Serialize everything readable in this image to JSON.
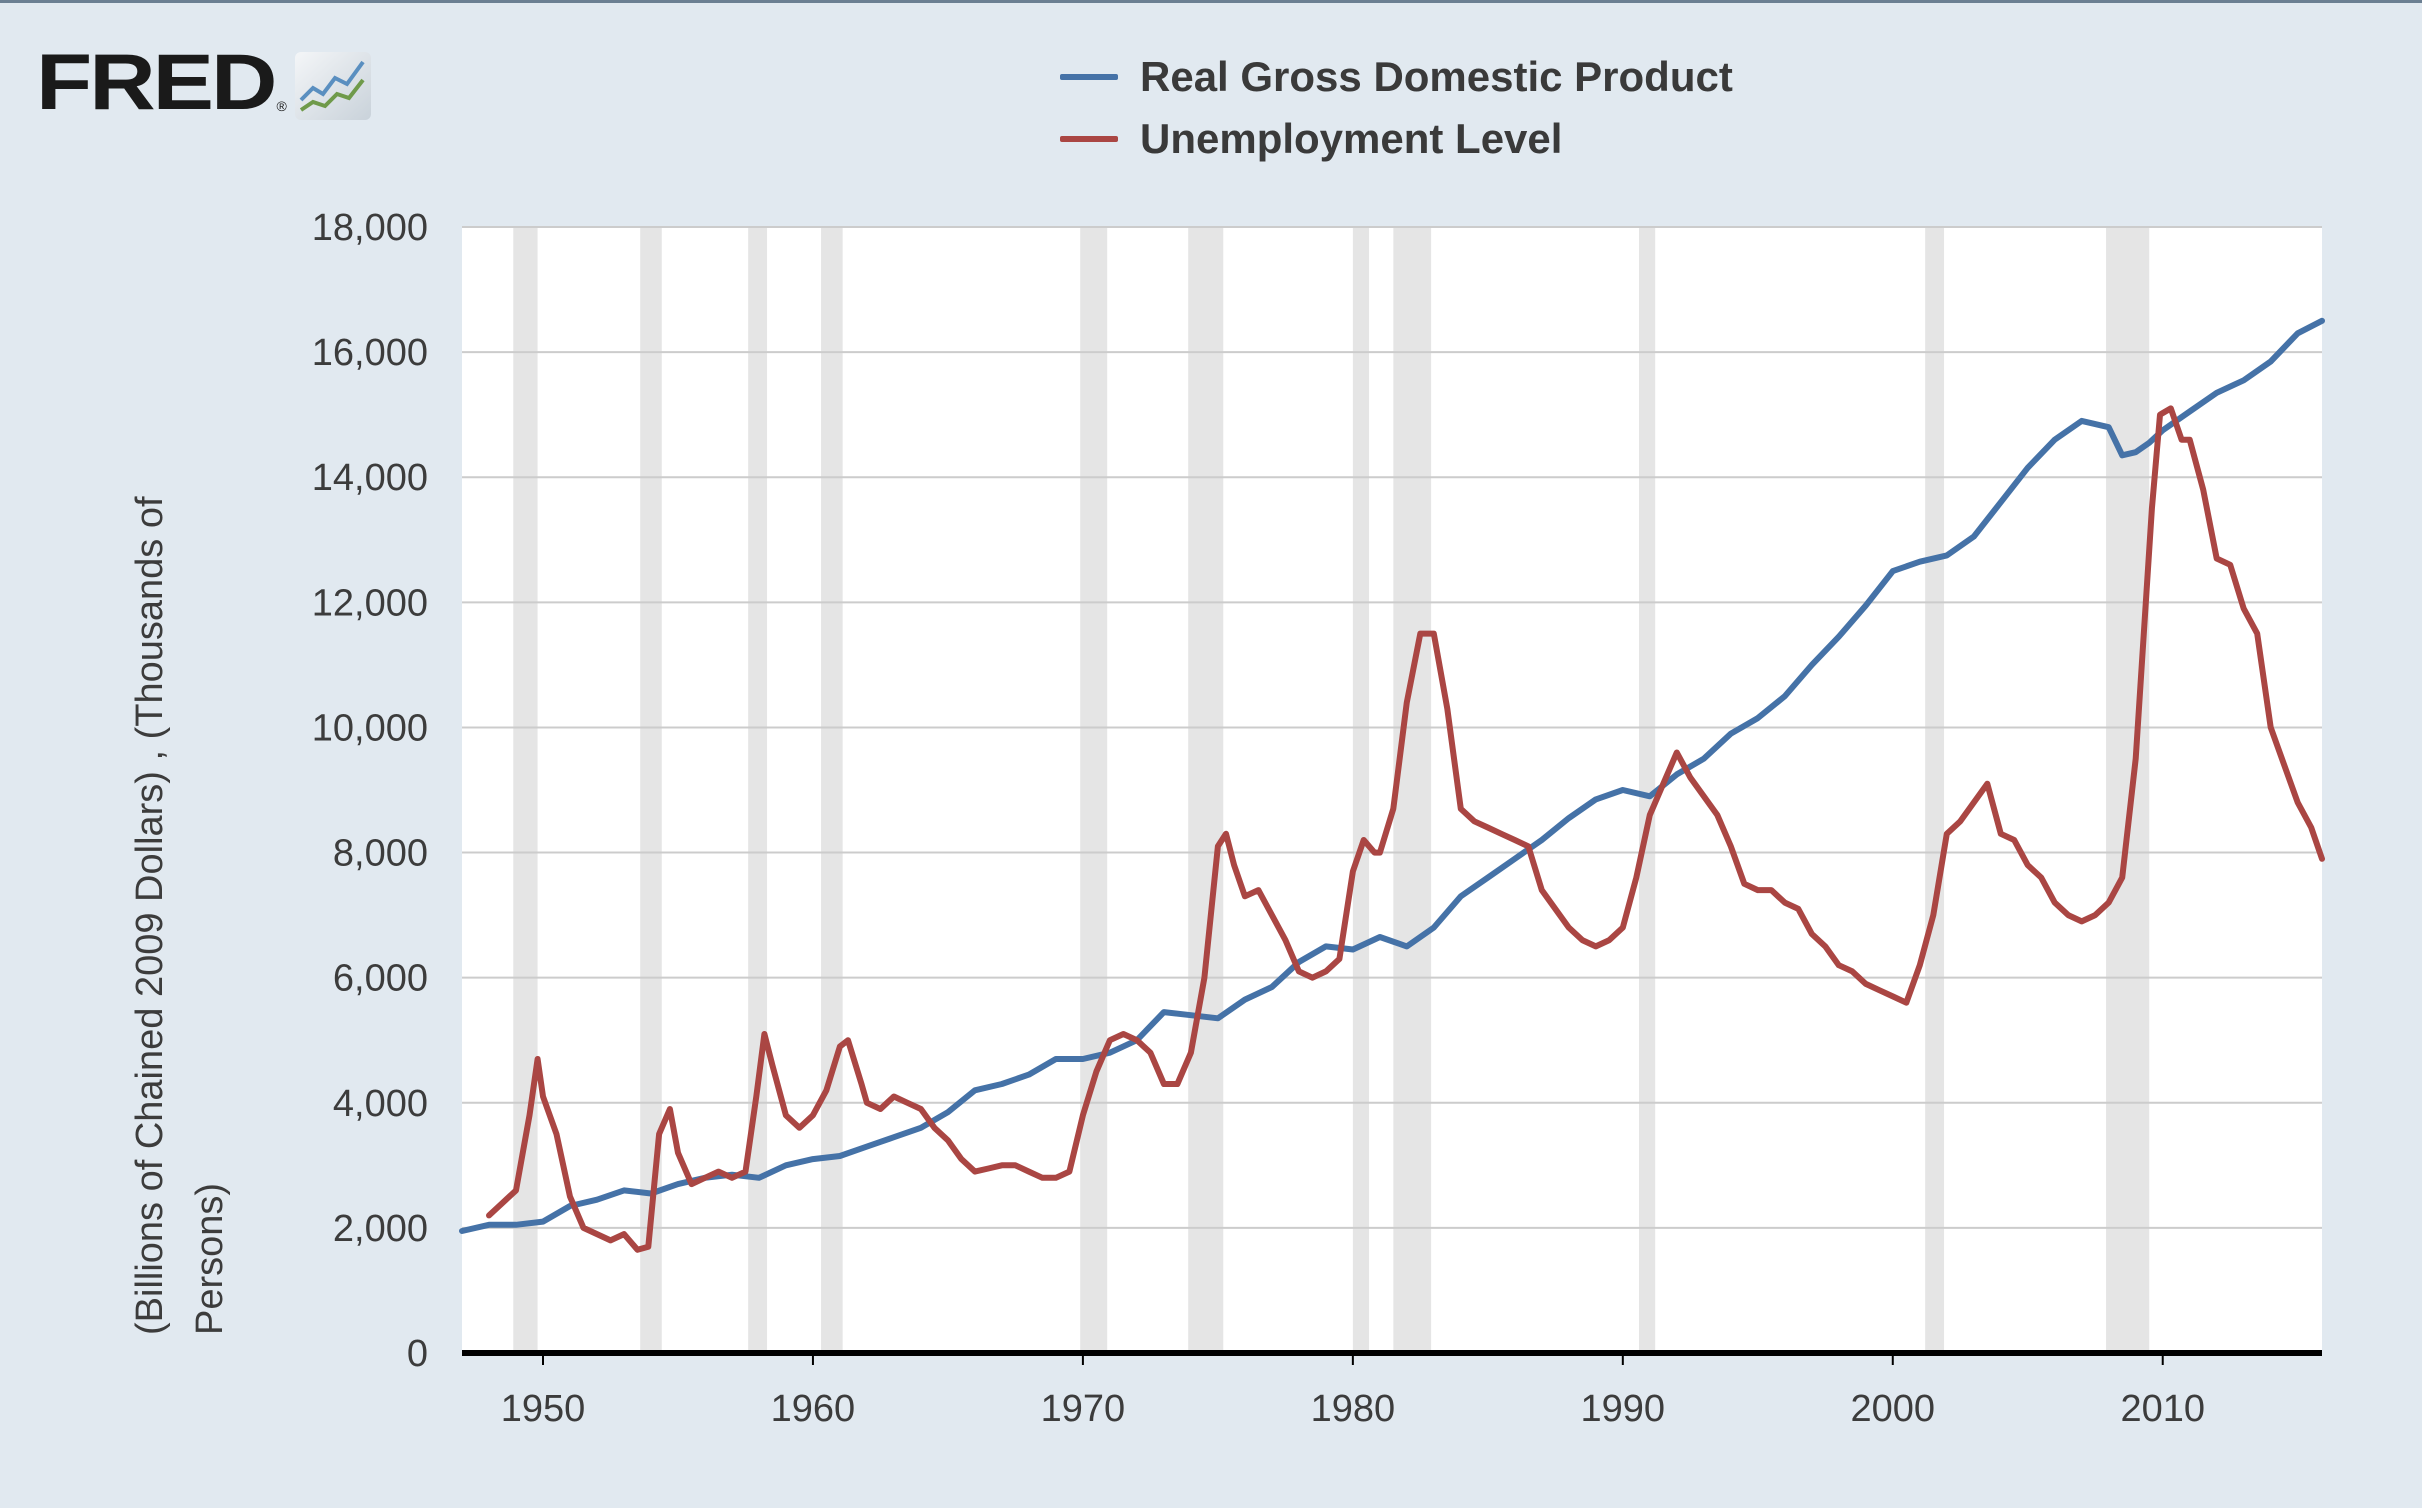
{
  "logo": {
    "text": "FRED",
    "mark": "®"
  },
  "colors": {
    "gdp": "#4572a7",
    "unemp": "#aa4643",
    "background": "#e1e9f0",
    "plot": "#ffffff",
    "recession": "#e5e5e5",
    "grid": "#cccccc"
  },
  "chart_data": {
    "type": "line",
    "title": "",
    "xlabel": "",
    "ylabel_lines": [
      "(Billions of Chained 2009 Dollars) , (Thousands of",
      "Persons)"
    ],
    "xlim": [
      1947,
      2015.9
    ],
    "ylim": [
      0,
      18000
    ],
    "x_ticks": [
      1950,
      1960,
      1970,
      1980,
      1990,
      2000,
      2010
    ],
    "x_tick_labels": [
      "1950",
      "1960",
      "1970",
      "1980",
      "1990",
      "2000",
      "2010"
    ],
    "y_ticks": [
      0,
      2000,
      4000,
      6000,
      8000,
      10000,
      12000,
      14000,
      16000,
      18000
    ],
    "y_tick_labels": [
      "0",
      "2,000",
      "4,000",
      "6,000",
      "8,000",
      "10,000",
      "12,000",
      "14,000",
      "16,000",
      "18,000"
    ],
    "legend_position": "top-center",
    "recessions": [
      [
        1948.9,
        1949.8
      ],
      [
        1953.6,
        1954.4
      ],
      [
        1957.6,
        1958.3
      ],
      [
        1960.3,
        1961.1
      ],
      [
        1969.9,
        1970.9
      ],
      [
        1973.9,
        1975.2
      ],
      [
        1980.0,
        1980.6
      ],
      [
        1981.5,
        1982.9
      ],
      [
        1990.6,
        1991.2
      ],
      [
        2001.2,
        2001.9
      ],
      [
        2007.9,
        2009.5
      ]
    ],
    "series": [
      {
        "name": "Real Gross Domestic Product",
        "color": "#4572a7",
        "x": [
          1947,
          1948,
          1949,
          1950,
          1951,
          1952,
          1953,
          1954,
          1955,
          1956,
          1957,
          1958,
          1959,
          1960,
          1961,
          1962,
          1963,
          1964,
          1965,
          1966,
          1967,
          1968,
          1969,
          1970,
          1971,
          1972,
          1973,
          1974,
          1975,
          1976,
          1977,
          1978,
          1979,
          1980,
          1981,
          1982,
          1983,
          1984,
          1985,
          1986,
          1987,
          1988,
          1989,
          1990,
          1991,
          1992,
          1993,
          1994,
          1995,
          1996,
          1997,
          1998,
          1999,
          2000,
          2001,
          2002,
          2003,
          2004,
          2005,
          2006,
          2007,
          2008,
          2008.5,
          2009,
          2009.5,
          2010,
          2011,
          2012,
          2013,
          2014,
          2015,
          2015.9
        ],
        "values": [
          1950,
          2050,
          2050,
          2100,
          2350,
          2450,
          2600,
          2550,
          2700,
          2800,
          2850,
          2800,
          3000,
          3100,
          3150,
          3300,
          3450,
          3600,
          3850,
          4200,
          4300,
          4450,
          4700,
          4700,
          4800,
          5000,
          5450,
          5400,
          5350,
          5650,
          5850,
          6250,
          6500,
          6450,
          6650,
          6500,
          6800,
          7300,
          7600,
          7900,
          8200,
          8550,
          8850,
          9000,
          8900,
          9250,
          9500,
          9900,
          10150,
          10500,
          11000,
          11450,
          11950,
          12500,
          12650,
          12750,
          13050,
          13600,
          14150,
          14600,
          14900,
          14800,
          14350,
          14400,
          14550,
          14750,
          15050,
          15350,
          15550,
          15850,
          16300,
          16500
        ]
      },
      {
        "name": "Unemployment Level",
        "color": "#aa4643",
        "x": [
          1948,
          1948.5,
          1949,
          1949.5,
          1949.8,
          1950,
          1950.5,
          1951,
          1951.5,
          1952,
          1952.5,
          1953,
          1953.5,
          1953.9,
          1954.3,
          1954.7,
          1955,
          1955.5,
          1956,
          1956.5,
          1957,
          1957.5,
          1957.9,
          1958.2,
          1958.5,
          1959,
          1959.5,
          1960,
          1960.5,
          1961,
          1961.3,
          1961.8,
          1962,
          1962.5,
          1963,
          1963.5,
          1964,
          1964.5,
          1965,
          1965.5,
          1966,
          1966.5,
          1967,
          1967.5,
          1968,
          1968.5,
          1969,
          1969.5,
          1970,
          1970.5,
          1971,
          1971.5,
          1972,
          1972.5,
          1973,
          1973.5,
          1974,
          1974.5,
          1975,
          1975.3,
          1975.6,
          1976,
          1976.5,
          1977,
          1977.5,
          1978,
          1978.5,
          1979,
          1979.5,
          1980,
          1980.4,
          1980.8,
          1981,
          1981.5,
          1982,
          1982.5,
          1983,
          1983.5,
          1984,
          1984.5,
          1985,
          1985.5,
          1986,
          1986.5,
          1987,
          1987.5,
          1988,
          1988.5,
          1989,
          1989.5,
          1990,
          1990.5,
          1991,
          1991.5,
          1992,
          1992.5,
          1993,
          1993.5,
          1994,
          1994.5,
          1995,
          1995.5,
          1996,
          1996.5,
          1997,
          1997.5,
          1998,
          1998.5,
          1999,
          1999.5,
          2000,
          2000.5,
          2001,
          2001.5,
          2002,
          2002.5,
          2003,
          2003.5,
          2004,
          2004.5,
          2005,
          2005.5,
          2006,
          2006.5,
          2007,
          2007.5,
          2008,
          2008.5,
          2009,
          2009.3,
          2009.6,
          2009.9,
          2010.3,
          2010.7,
          2011,
          2011.5,
          2012,
          2012.5,
          2013,
          2013.5,
          2014,
          2014.5,
          2015,
          2015.5,
          2015.9
        ],
        "values": [
          2200,
          2400,
          2600,
          3800,
          4700,
          4100,
          3500,
          2500,
          2000,
          1900,
          1800,
          1900,
          1650,
          1700,
          3500,
          3900,
          3200,
          2700,
          2800,
          2900,
          2800,
          2900,
          4100,
          5100,
          4600,
          3800,
          3600,
          3800,
          4200,
          4900,
          5000,
          4300,
          4000,
          3900,
          4100,
          4000,
          3900,
          3600,
          3400,
          3100,
          2900,
          2950,
          3000,
          3000,
          2900,
          2800,
          2800,
          2900,
          3800,
          4500,
          5000,
          5100,
          5000,
          4800,
          4300,
          4300,
          4800,
          6000,
          8100,
          8300,
          7800,
          7300,
          7400,
          7000,
          6600,
          6100,
          6000,
          6100,
          6300,
          7700,
          8200,
          8000,
          8000,
          8700,
          10400,
          11500,
          11500,
          10300,
          8700,
          8500,
          8400,
          8300,
          8200,
          8100,
          7400,
          7100,
          6800,
          6600,
          6500,
          6600,
          6800,
          7600,
          8600,
          9100,
          9600,
          9200,
          8900,
          8600,
          8100,
          7500,
          7400,
          7400,
          7200,
          7100,
          6700,
          6500,
          6200,
          6100,
          5900,
          5800,
          5700,
          5600,
          6200,
          7000,
          8300,
          8500,
          8800,
          9100,
          8300,
          8200,
          7800,
          7600,
          7200,
          7000,
          6900,
          7000,
          7200,
          7600,
          9500,
          11500,
          13500,
          15000,
          15100,
          14600,
          14600,
          13800,
          12700,
          12600,
          11900,
          11500,
          10000,
          9400,
          8800,
          8400,
          7900
        ]
      }
    ]
  }
}
